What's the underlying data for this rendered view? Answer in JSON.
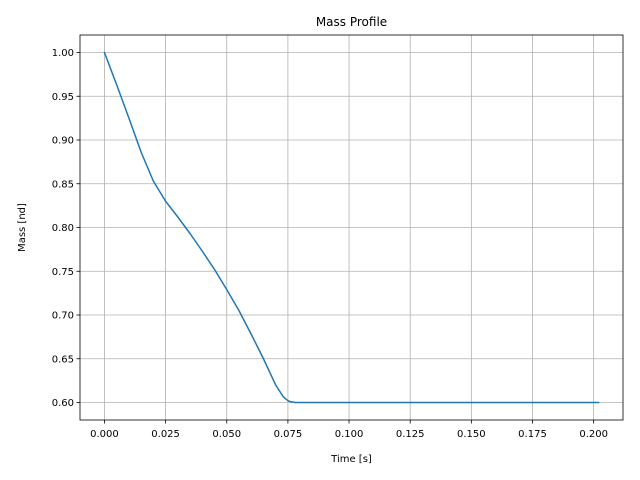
{
  "chart_data": {
    "type": "line",
    "title": "Mass Profile",
    "xlabel": "Time [s]",
    "ylabel": "Mass [nd]",
    "xlim": [
      -0.01,
      0.212
    ],
    "ylim": [
      0.58,
      1.02
    ],
    "grid": true,
    "x_ticks": [
      "0.000",
      "0.025",
      "0.050",
      "0.075",
      "0.100",
      "0.125",
      "0.150",
      "0.175",
      "0.200"
    ],
    "y_ticks": [
      "0.60",
      "0.65",
      "0.70",
      "0.75",
      "0.80",
      "0.85",
      "0.90",
      "0.95",
      "1.00"
    ],
    "series": [
      {
        "color": "#1f77b4",
        "x": [
          0.0,
          0.005,
          0.01,
          0.015,
          0.02,
          0.025,
          0.03,
          0.035,
          0.04,
          0.045,
          0.05,
          0.055,
          0.06,
          0.065,
          0.07,
          0.073,
          0.075,
          0.076,
          0.078,
          0.08,
          0.1,
          0.125,
          0.15,
          0.175,
          0.2,
          0.202
        ],
        "y": [
          1.0,
          0.963,
          0.925,
          0.886,
          0.853,
          0.83,
          0.812,
          0.793,
          0.773,
          0.752,
          0.729,
          0.705,
          0.678,
          0.65,
          0.62,
          0.607,
          0.602,
          0.601,
          0.6,
          0.6,
          0.6,
          0.6,
          0.6,
          0.6,
          0.6,
          0.6
        ]
      }
    ]
  },
  "colors": {
    "line": "#1f77b4",
    "grid": "#b0b0b0",
    "axes": "#000000"
  }
}
